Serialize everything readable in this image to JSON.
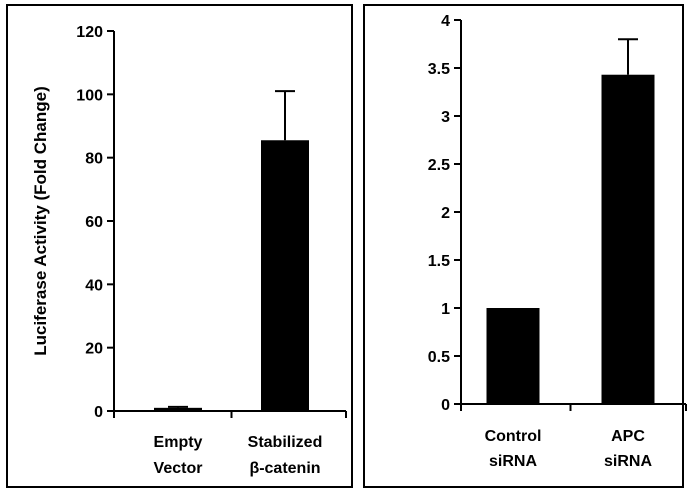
{
  "chart_data": [
    {
      "type": "bar",
      "categories": [
        [
          "Empty",
          "Vector"
        ],
        [
          "Stabilized",
          "β-catenin"
        ]
      ],
      "values": [
        1,
        85.5
      ],
      "errors": [
        0.3,
        15.5
      ],
      "ylabel": "Luciferase Activity (Fold Change)",
      "ylim": [
        0,
        120
      ],
      "yticks": [
        "0",
        "20",
        "40",
        "60",
        "80",
        "100",
        "120"
      ],
      "bar_color": "#000000"
    },
    {
      "type": "bar",
      "categories": [
        [
          "Control",
          "siRNA"
        ],
        [
          "APC",
          "siRNA"
        ]
      ],
      "values": [
        1.0,
        3.43
      ],
      "errors": [
        0.0,
        0.37
      ],
      "ylabel": "",
      "ylim": [
        0,
        4
      ],
      "yticks": [
        "0",
        "0.5",
        "1",
        "1.5",
        "2",
        "2.5",
        "3",
        "3.5",
        "4"
      ],
      "bar_color": "#000000"
    }
  ]
}
